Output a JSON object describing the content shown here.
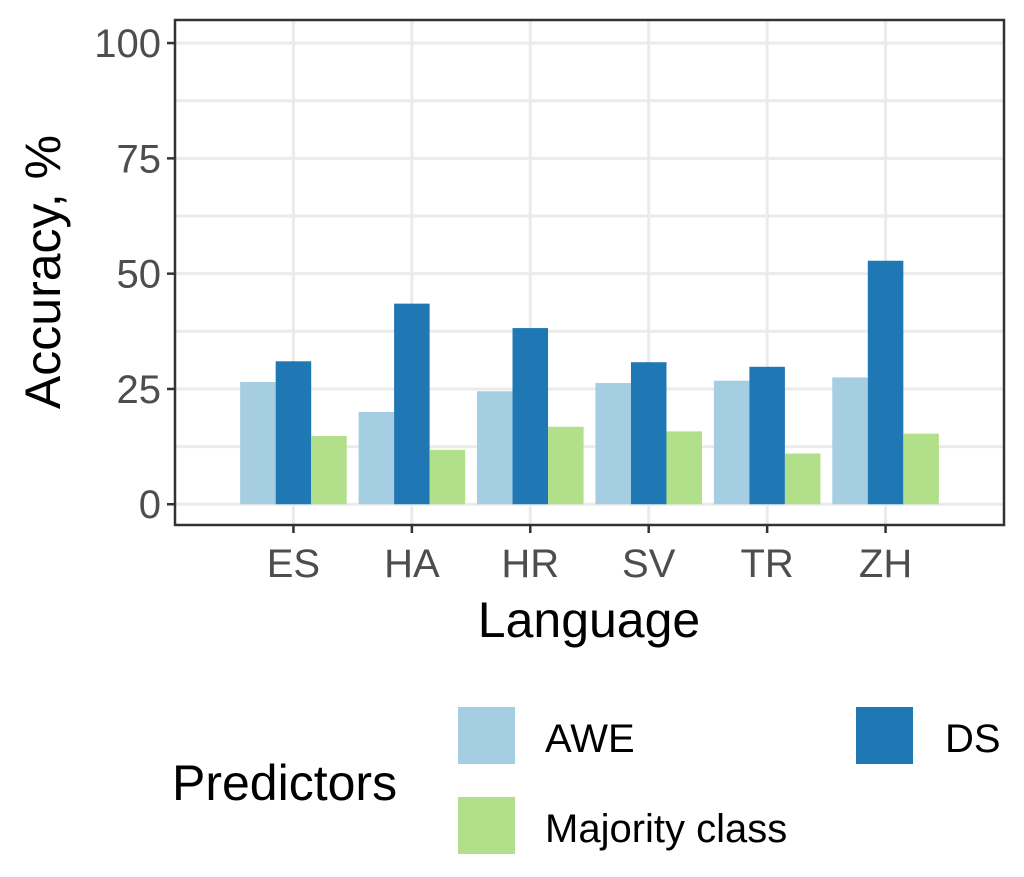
{
  "chart_data": {
    "type": "bar",
    "categories": [
      "ES",
      "HA",
      "HR",
      "SV",
      "TR",
      "ZH"
    ],
    "series": [
      {
        "name": "AWE",
        "color": "#a6cee3",
        "values": [
          26.5,
          20,
          24.5,
          26.3,
          26.8,
          27.5
        ]
      },
      {
        "name": "DS",
        "color": "#1f78b4",
        "values": [
          31,
          43.5,
          38.2,
          30.8,
          29.8,
          52.8
        ]
      },
      {
        "name": "Majority class",
        "color": "#b2df8a",
        "values": [
          14.8,
          11.8,
          16.8,
          15.8,
          11,
          15.3
        ]
      }
    ],
    "xlabel": "Language",
    "ylabel": "Accuracy, %",
    "ylim": [
      -4.5,
      105
    ],
    "yticks": [
      0,
      25,
      50,
      75,
      100
    ],
    "grid": true,
    "legend": {
      "title": "Predictors",
      "placement": "bottom",
      "entries": [
        "AWE",
        "DS",
        "Majority class"
      ]
    }
  }
}
